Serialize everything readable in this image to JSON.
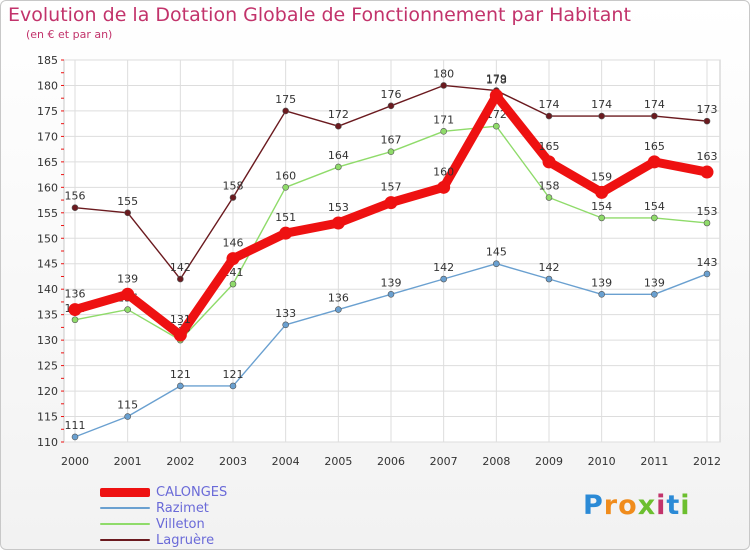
{
  "title": "Evolution de la Dotation Globale de Fonctionnement par Habitant",
  "subtitle": "(en € et par an)",
  "logo": {
    "letters": [
      "P",
      "r",
      "o",
      "x",
      "i",
      "t",
      "i"
    ],
    "colors": [
      "#2b8ad6",
      "#f08c1c",
      "#f08c1c",
      "#6cbf2f",
      "#c2336b",
      "#2b8ad6",
      "#6cbf2f"
    ]
  },
  "chart_data": {
    "type": "line",
    "x": [
      "2000",
      "2001",
      "2002",
      "2003",
      "2004",
      "2005",
      "2006",
      "2007",
      "2008",
      "2009",
      "2010",
      "2011",
      "2012"
    ],
    "ylim": [
      110,
      185
    ],
    "yticks": [
      110,
      115,
      120,
      125,
      130,
      135,
      140,
      145,
      150,
      155,
      160,
      165,
      170,
      175,
      180,
      185
    ],
    "grid": true,
    "legend_position": "bottom-left",
    "series": [
      {
        "name": "Lagruère",
        "color": "#6b1a1f",
        "values": [
          156,
          155,
          142,
          158,
          175,
          172,
          176,
          180,
          179,
          174,
          174,
          174,
          173
        ]
      },
      {
        "name": "Villeton",
        "color": "#8fdb6a",
        "values": [
          134,
          136,
          130,
          141,
          160,
          164,
          167,
          171,
          172,
          158,
          154,
          154,
          153
        ]
      },
      {
        "name": "Razimet",
        "color": "#6aa0d0",
        "values": [
          111,
          115,
          121,
          121,
          133,
          136,
          139,
          142,
          145,
          142,
          139,
          139,
          143
        ]
      },
      {
        "name": "CALONGES",
        "color": "#ee1111",
        "values": [
          136,
          139,
          131,
          146,
          151,
          153,
          157,
          160,
          178,
          165,
          159,
          165,
          163
        ]
      }
    ]
  },
  "legend": [
    {
      "name": "CALONGES",
      "color": "#ee1111",
      "text_color": "#6a6ad8"
    },
    {
      "name": "Razimet",
      "color": "#6aa0d0",
      "text_color": "#6a6ad8"
    },
    {
      "name": "Villeton",
      "color": "#8fdb6a",
      "text_color": "#6a6ad8"
    },
    {
      "name": "Lagruère",
      "color": "#6b1a1f",
      "text_color": "#6a6ad8"
    }
  ]
}
